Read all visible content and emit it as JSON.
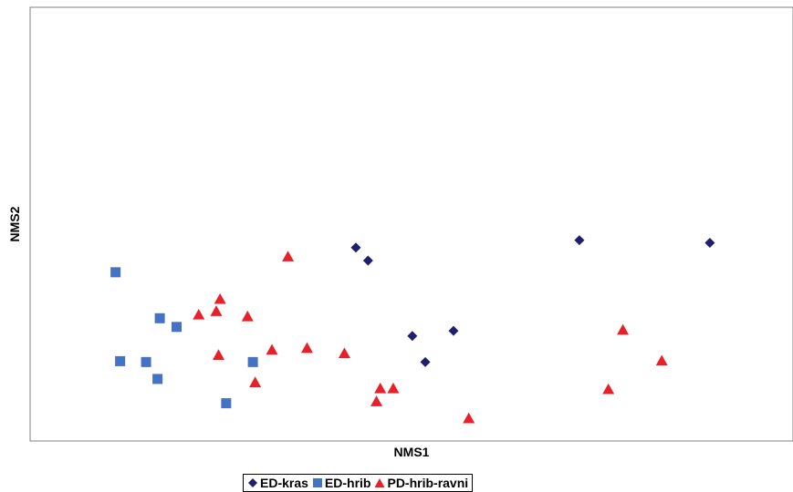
{
  "chart_data": {
    "type": "scatter",
    "title": "",
    "xlabel": "NMS1",
    "ylabel": "NMS2",
    "xlim": [
      0,
      100
    ],
    "ylim": [
      0,
      100
    ],
    "grid": false,
    "legend_position": "bottom-center",
    "series": [
      {
        "name": "ED-kras",
        "marker": "diamond",
        "color": "#1f1f6e",
        "points": [
          {
            "x": 42.7,
            "y": 44.6
          },
          {
            "x": 44.3,
            "y": 41.6
          },
          {
            "x": 50.1,
            "y": 24.2
          },
          {
            "x": 51.8,
            "y": 18.2
          },
          {
            "x": 55.5,
            "y": 25.4
          },
          {
            "x": 72.0,
            "y": 46.3
          },
          {
            "x": 89.1,
            "y": 45.7
          }
        ]
      },
      {
        "name": "ED-hrib",
        "color": "#4472c4",
        "marker": "square",
        "points": [
          {
            "x": 11.2,
            "y": 38.9
          },
          {
            "x": 11.8,
            "y": 18.4
          },
          {
            "x": 15.2,
            "y": 18.2
          },
          {
            "x": 16.7,
            "y": 14.3
          },
          {
            "x": 17.0,
            "y": 28.3
          },
          {
            "x": 19.2,
            "y": 26.3
          },
          {
            "x": 25.7,
            "y": 8.7
          },
          {
            "x": 29.2,
            "y": 18.2
          }
        ]
      },
      {
        "name": "PD-hrib-ravni",
        "color": "#e8202a",
        "marker": "triangle",
        "points": [
          {
            "x": 22.1,
            "y": 29.1
          },
          {
            "x": 24.4,
            "y": 29.9
          },
          {
            "x": 24.7,
            "y": 19.8
          },
          {
            "x": 24.9,
            "y": 32.7
          },
          {
            "x": 28.5,
            "y": 28.7
          },
          {
            "x": 29.5,
            "y": 13.5
          },
          {
            "x": 31.7,
            "y": 21.0
          },
          {
            "x": 33.8,
            "y": 42.5
          },
          {
            "x": 36.3,
            "y": 21.4
          },
          {
            "x": 41.2,
            "y": 20.2
          },
          {
            "x": 45.4,
            "y": 9.1
          },
          {
            "x": 45.9,
            "y": 12.1
          },
          {
            "x": 47.6,
            "y": 12.1
          },
          {
            "x": 57.5,
            "y": 5.2
          },
          {
            "x": 75.8,
            "y": 11.9
          },
          {
            "x": 77.7,
            "y": 25.6
          },
          {
            "x": 82.8,
            "y": 18.5
          }
        ]
      }
    ]
  }
}
